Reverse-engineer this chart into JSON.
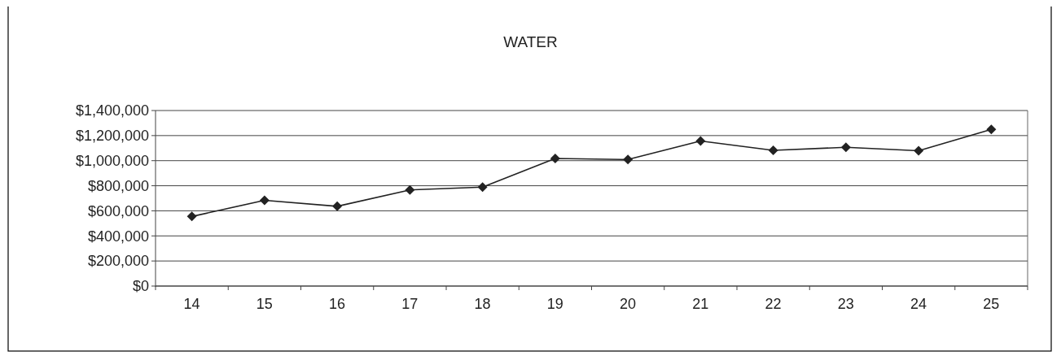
{
  "chart_data": {
    "type": "line",
    "title": "WATER",
    "categories": [
      "14",
      "15",
      "16",
      "17",
      "18",
      "19",
      "20",
      "21",
      "22",
      "23",
      "24",
      "25"
    ],
    "series": [
      {
        "color": "#222222",
        "values": [
          555000,
          684000,
          636000,
          767000,
          789000,
          1018000,
          1009000,
          1157000,
          1082000,
          1107000,
          1079000,
          1249000
        ]
      }
    ],
    "ylim": [
      0,
      1400000
    ],
    "yticks": [
      {
        "value": 0,
        "label": "$0"
      },
      {
        "value": 200000,
        "label": "$200,000"
      },
      {
        "value": 400000,
        "label": "$400,000"
      },
      {
        "value": 600000,
        "label": "$600,000"
      },
      {
        "value": 800000,
        "label": "$800,000"
      },
      {
        "value": 1000000,
        "label": "$1,000,000"
      },
      {
        "value": 1200000,
        "label": "$1,200,000"
      },
      {
        "value": 1400000,
        "label": "$1,400,000"
      }
    ],
    "grid": "y",
    "marker": "diamond",
    "line_style": "solid"
  }
}
